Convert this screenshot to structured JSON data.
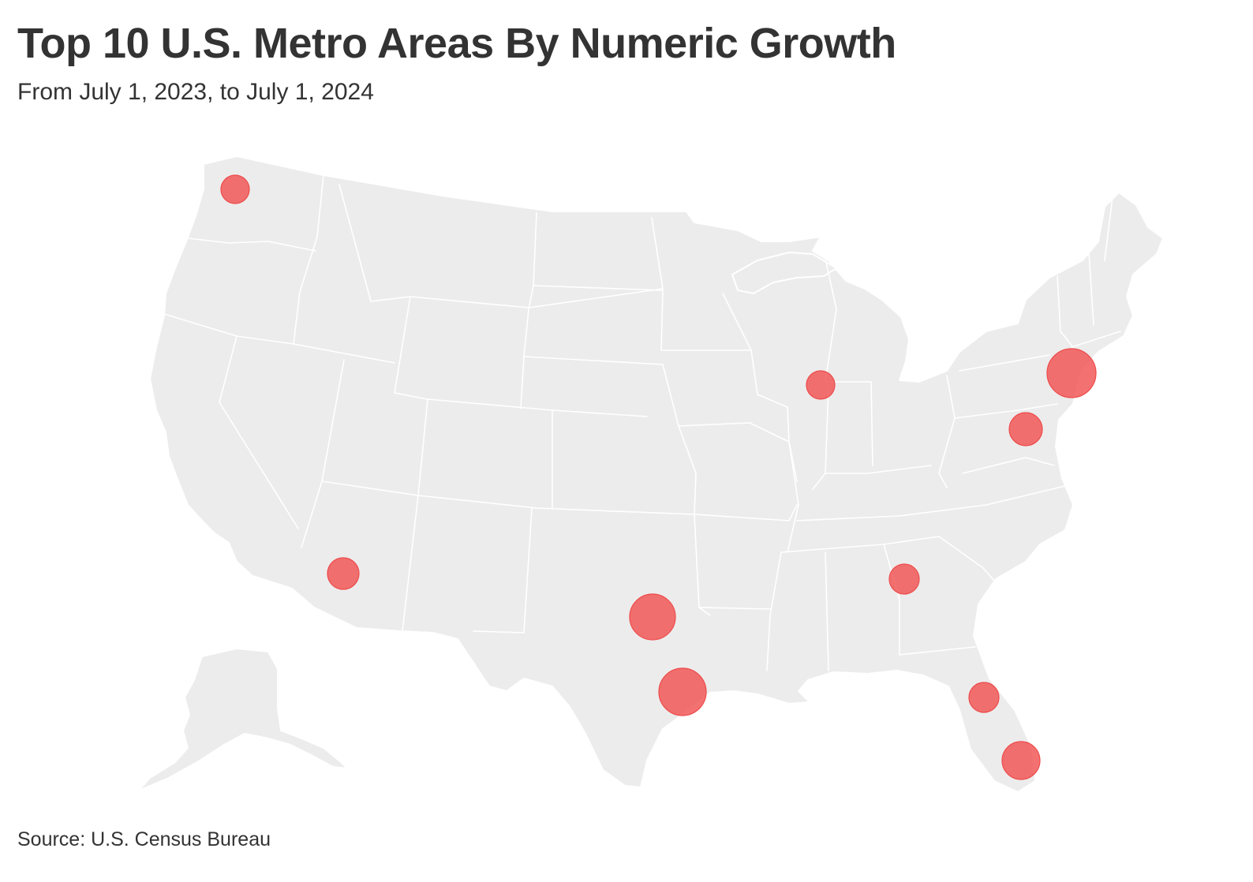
{
  "title": "Top 10 U.S. Metro Areas By Numeric Growth",
  "subtitle": "From July 1, 2023, to July 1, 2024",
  "source": "Source: U.S. Census Bureau",
  "colors": {
    "land": "#ececec",
    "border": "#ffffff",
    "dot": "#f05252",
    "text": "#333333"
  },
  "markers": [
    {
      "id": "seattle",
      "size": "small"
    },
    {
      "id": "phoenix",
      "size": "medium"
    },
    {
      "id": "dallas",
      "size": "large"
    },
    {
      "id": "houston",
      "size": "xlarge"
    },
    {
      "id": "chicago",
      "size": "small"
    },
    {
      "id": "atlanta",
      "size": "small"
    },
    {
      "id": "new-york",
      "size": "large"
    },
    {
      "id": "washington",
      "size": "medium"
    },
    {
      "id": "orlando",
      "size": "small"
    },
    {
      "id": "miami",
      "size": "medium"
    }
  ]
}
